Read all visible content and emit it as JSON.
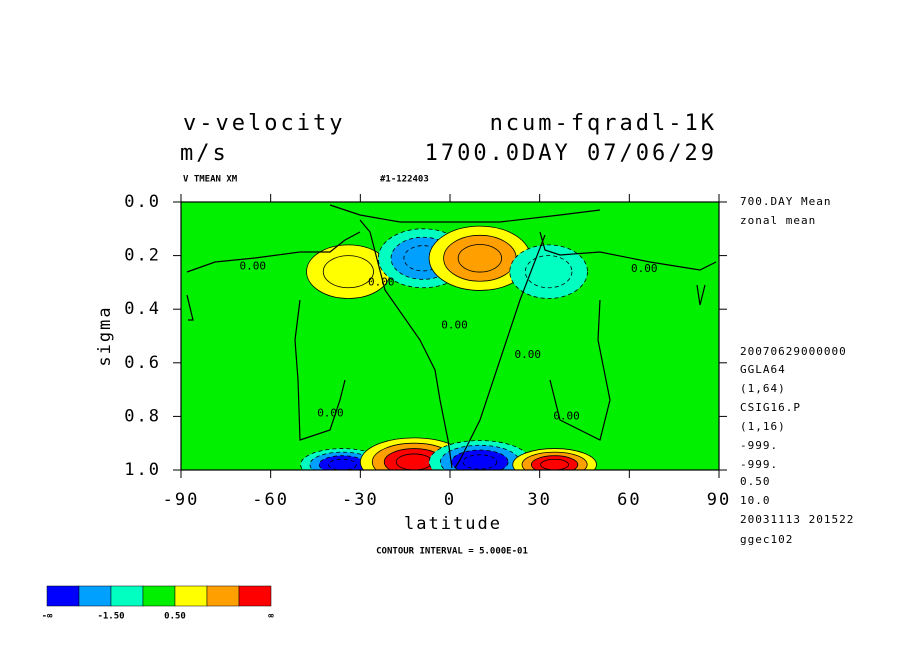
{
  "chart_data": {
    "type": "contour",
    "title": "v-velocity",
    "experiment": "ncum-fqradl-1K",
    "units": "m/s",
    "time": "1700.0DAY 07/06/29",
    "variable": "V TMEAN XM",
    "run_id": "#1-122403",
    "info": [
      "700.DAY Mean",
      "zonal mean",
      "20070629000000",
      "GGLA64",
      "(1,64)",
      "CSIG16.P",
      "(1,16)",
      "-999.",
      "-999.",
      "0.50",
      "10.0",
      "20031113 201522",
      "ggec102"
    ],
    "x_label": "latitude",
    "y_label": "sigma",
    "note": "CONTOUR INTERVAL = 5.000E-01",
    "xlim": [
      -90,
      90
    ],
    "xticks": [
      -90,
      -60,
      -30,
      0,
      30,
      60,
      90
    ],
    "ylim": [
      0,
      1
    ],
    "y_inverted": true,
    "yticks": [
      {
        "value": 0,
        "label": "0.0"
      },
      0.2,
      0.4,
      0.6,
      0.8,
      {
        "value": 1,
        "label": "1.0"
      }
    ],
    "contour_labels": [
      {
        "label": "0.00",
        "lat": -66,
        "sigma": 0.24
      },
      {
        "label": "0.00",
        "lat": -23,
        "sigma": 0.3
      },
      {
        "label": "0.00",
        "lat": 1.5,
        "sigma": 0.46
      },
      {
        "label": "0.00",
        "lat": 26,
        "sigma": 0.57
      },
      {
        "label": "0.00",
        "lat": -40,
        "sigma": 0.79
      },
      {
        "label": "0.00",
        "lat": 39,
        "sigma": 0.8
      },
      {
        "label": "0.00",
        "lat": 65,
        "sigma": 0.25
      }
    ],
    "features": [
      {
        "lat": -34,
        "sigma": 0.26,
        "value": 0.75
      },
      {
        "lat": -9,
        "sigma": 0.21,
        "value": -1.25
      },
      {
        "lat": 10,
        "sigma": 0.21,
        "value": 1.25
      },
      {
        "lat": 33,
        "sigma": 0.26,
        "value": -0.75
      },
      {
        "lat": -36,
        "sigma": 0.98,
        "value": -2
      },
      {
        "lat": -12,
        "sigma": 0.97,
        "value": 2
      },
      {
        "lat": 10,
        "sigma": 0.97,
        "value": -2
      },
      {
        "lat": 35,
        "sigma": 0.98,
        "value": 2
      }
    ],
    "colorbar": {
      "colors": [
        "#0000ff",
        "#00a0ff",
        "#00ffc0",
        "#00f000",
        "#ffff00",
        "#ffa000",
        "#ff0000"
      ],
      "bounds": [
        -1.5,
        -1,
        -0.5,
        0.5,
        1,
        1.5
      ],
      "labels": [
        "-∞",
        "-1.50",
        "0.50",
        "∞"
      ]
    }
  }
}
